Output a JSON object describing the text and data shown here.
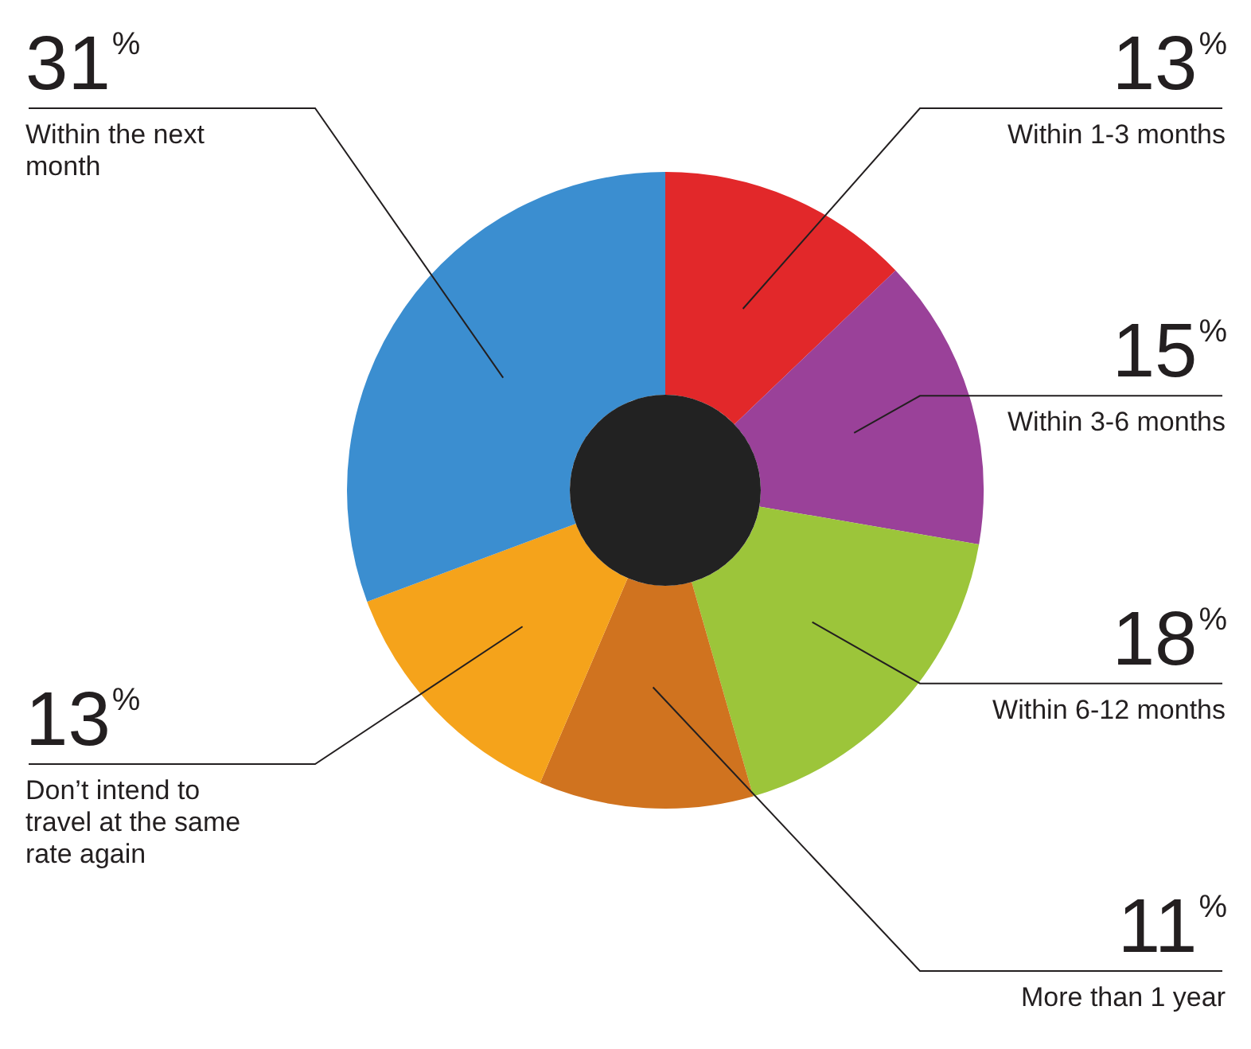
{
  "chart_data": {
    "type": "donut",
    "categories": [
      "Within 1-3 months",
      "Within 3-6 months",
      "Within 6-12 months",
      "More than 1 year",
      "Don’t intend to travel at the same rate again",
      "Within the next month"
    ],
    "values": [
      13,
      15,
      18,
      11,
      13,
      31
    ],
    "value_labels": [
      "13%",
      "15%",
      "18%",
      "11%",
      "13%",
      "31%"
    ],
    "colors": [
      "#e2282a",
      "#9a4199",
      "#9cc53a",
      "#d0731f",
      "#f5a31b",
      "#3b8ed0"
    ],
    "legend": false
  }
}
